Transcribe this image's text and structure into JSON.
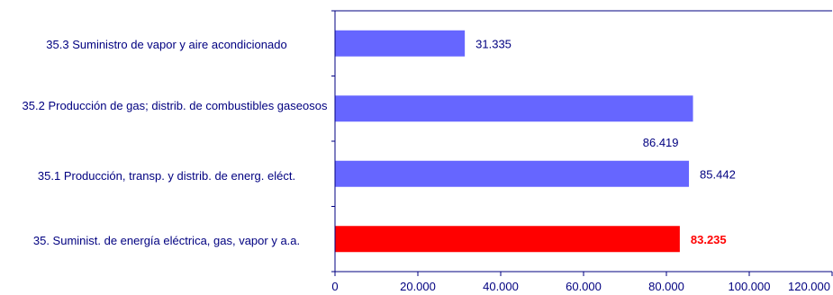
{
  "chart_data": {
    "type": "bar",
    "orientation": "horizontal",
    "title": "",
    "xlabel": "",
    "ylabel": "",
    "xlim": [
      0,
      120000
    ],
    "ticks": [
      0,
      20000,
      40000,
      60000,
      80000,
      100000,
      120000
    ],
    "tick_labels": [
      "0",
      "20.000",
      "40.000",
      "60.000",
      "80.000",
      "100.000",
      "120.000"
    ],
    "grid": false,
    "categories": [
      "35.3 Suministro de vapor y aire acondicionado",
      "35.2 Producción de gas; distrib. de combustibles gaseosos",
      "35.1 Producción, transp. y distrib. de energ. eléct.",
      "35. Suminist. de energía eléctrica, gas, vapor y a.a."
    ],
    "values": [
      31335,
      86419,
      85442,
      83235
    ],
    "value_labels": [
      "31.335",
      "86.419",
      "85.442",
      "83.235"
    ],
    "highlight_index": 3,
    "colors": {
      "bar": "#6666ff",
      "highlight": "#ff0000",
      "axis": "#000080",
      "text": "#000080"
    }
  }
}
